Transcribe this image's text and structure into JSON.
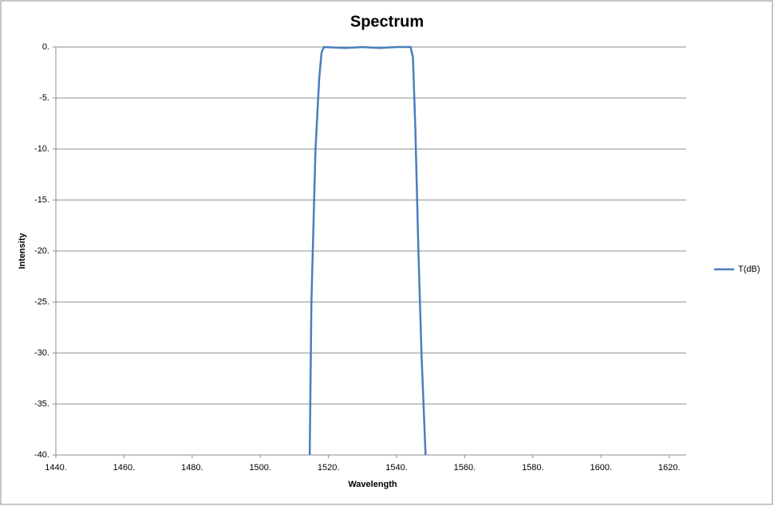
{
  "chart_data": {
    "type": "line",
    "title": "Spectrum",
    "xlabel": "Wavelength",
    "ylabel": "Intensity",
    "x": [
      1514.5,
      1515.0,
      1516.2,
      1517.3,
      1518.0,
      1518.7,
      1525,
      1530,
      1535,
      1540,
      1544.1,
      1544.8,
      1545.5,
      1546.4,
      1547.3,
      1548.5
    ],
    "series": [
      {
        "name": "T(dB)",
        "color": "#4a7ebb",
        "values": [
          -40,
          -25,
          -10,
          -3,
          -0.5,
          0,
          -0.1,
          0,
          -0.1,
          0,
          0,
          -1,
          -8,
          -20,
          -30,
          -40
        ]
      }
    ],
    "xlim": [
      1440,
      1625
    ],
    "ylim": [
      -40,
      0
    ],
    "xticks": [
      {
        "value": 1440,
        "label": "1440."
      },
      {
        "value": 1460,
        "label": "1460."
      },
      {
        "value": 1480,
        "label": "1480."
      },
      {
        "value": 1500,
        "label": "1500."
      },
      {
        "value": 1520,
        "label": "1520."
      },
      {
        "value": 1540,
        "label": "1540."
      },
      {
        "value": 1560,
        "label": "1560."
      },
      {
        "value": 1580,
        "label": "1580."
      },
      {
        "value": 1600,
        "label": "1600."
      },
      {
        "value": 1620,
        "label": "1620."
      }
    ],
    "yticks": [
      {
        "value": 0,
        "label": "0."
      },
      {
        "value": -5,
        "label": "-5."
      },
      {
        "value": -10,
        "label": "-10."
      },
      {
        "value": -15,
        "label": "-15."
      },
      {
        "value": -20,
        "label": "-20."
      },
      {
        "value": -25,
        "label": "-25."
      },
      {
        "value": -30,
        "label": "-30."
      },
      {
        "value": -35,
        "label": "-35."
      },
      {
        "value": -40,
        "label": "-40."
      }
    ],
    "grid": true,
    "legend": "right"
  }
}
